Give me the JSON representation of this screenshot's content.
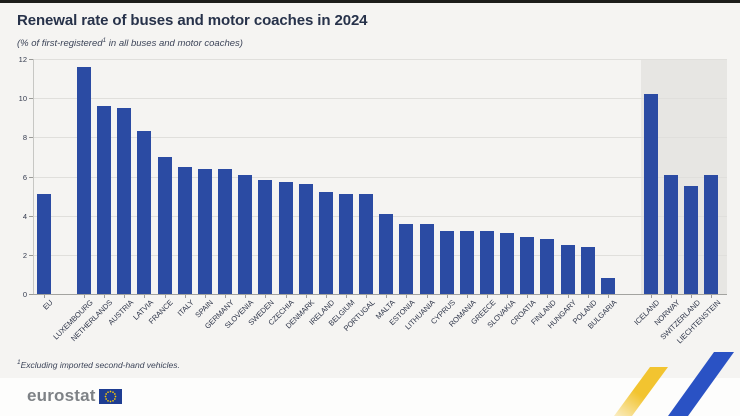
{
  "title": "Renewal rate of buses and motor coaches in 2024",
  "subtitle": {
    "pre": "(% of first-registered",
    "sup": "1",
    "post": " in all buses and motor coaches)"
  },
  "footnote": {
    "sup": "1",
    "text": "Excluding imported second-hand vehicles."
  },
  "logo": {
    "text": "eurostat"
  },
  "colors": {
    "bar": "#2b4ba3",
    "efta_band": "#e7e6e3",
    "title_text": "#27324a",
    "swoosh_yellow": "#f2c430",
    "swoosh_blue": "#2a52c4",
    "flag_blue": "#1e3d92",
    "flag_star_yellow": "#ffcc00",
    "logo_gray": "#7e8286"
  },
  "chart_data": {
    "type": "bar",
    "title": "Renewal rate of buses and motor coaches in 2024",
    "subtitle": "(% of first-registered1 in all buses and motor coaches)",
    "xlabel": "",
    "ylabel": "",
    "ylim": [
      0,
      12
    ],
    "yticks": [
      0,
      2,
      4,
      6,
      8,
      10,
      12
    ],
    "grid": true,
    "legend": false,
    "groups": [
      {
        "name": "eu-aggregate",
        "categories": [
          "EU"
        ],
        "values": [
          5.1
        ],
        "highlighted_background": false
      },
      {
        "name": "eu-members",
        "categories": [
          "LUXEMBOURG",
          "NETHERLANDS",
          "AUSTRIA",
          "LATVIA",
          "FRANCE",
          "ITALY",
          "SPAIN",
          "GERMANY",
          "SLOVENIA",
          "SWEDEN",
          "CZECHIA",
          "DENMARK",
          "IRELAND",
          "BELGIUM",
          "PORTUGAL",
          "MALTA",
          "ESTONIA",
          "LITHUANIA",
          "CYPRUS",
          "ROMANIA",
          "GREECE",
          "SLOVAKIA",
          "CROATIA",
          "FINLAND",
          "HUNGARY",
          "POLAND",
          "BULGARIA"
        ],
        "values": [
          11.6,
          9.6,
          9.5,
          8.3,
          7.0,
          6.5,
          6.4,
          6.4,
          6.1,
          5.8,
          5.7,
          5.6,
          5.2,
          5.1,
          5.1,
          4.1,
          3.6,
          3.6,
          3.2,
          3.2,
          3.2,
          3.1,
          2.9,
          2.8,
          2.5,
          2.4,
          0.8
        ],
        "highlighted_background": false
      },
      {
        "name": "efta",
        "categories": [
          "ICELAND",
          "NORWAY",
          "SWITZERLAND",
          "LIECHTENSTEIN"
        ],
        "values": [
          10.2,
          6.1,
          5.5,
          6.1
        ],
        "highlighted_background": true
      }
    ]
  }
}
